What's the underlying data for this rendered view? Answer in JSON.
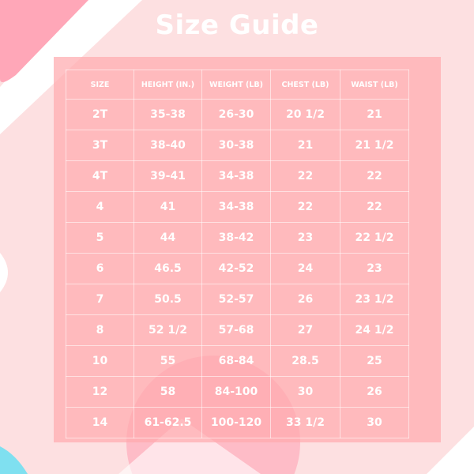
{
  "title": "Size Guide",
  "colors": {
    "background": "#fde0e1",
    "panel": "#ffaab0",
    "accent_pink": "#ffa5b5",
    "accent_cyan": "#7fe0f0",
    "text": "#ffffff"
  },
  "table": {
    "headers": [
      "SIZE",
      "HEIGHT (IN.)",
      "WEIGHT (LB)",
      "CHEST (LB)",
      "WAIST (LB)"
    ],
    "rows": [
      [
        "2T",
        "35-38",
        "26-30",
        "20 1/2",
        "21"
      ],
      [
        "3T",
        "38-40",
        "30-38",
        "21",
        "21 1/2"
      ],
      [
        "4T",
        "39-41",
        "34-38",
        "22",
        "22"
      ],
      [
        "4",
        "41",
        "34-38",
        "22",
        "22"
      ],
      [
        "5",
        "44",
        "38-42",
        "23",
        "22 1/2"
      ],
      [
        "6",
        "46.5",
        "42-52",
        "24",
        "23"
      ],
      [
        "7",
        "50.5",
        "52-57",
        "26",
        "23 1/2"
      ],
      [
        "8",
        "52 1/2",
        "57-68",
        "27",
        "24 1/2"
      ],
      [
        "10",
        "55",
        "68-84",
        "28.5",
        "25"
      ],
      [
        "12",
        "58",
        "84-100",
        "30",
        "26"
      ],
      [
        "14",
        "61-62.5",
        "100-120",
        "33 1/2",
        "30"
      ]
    ]
  }
}
